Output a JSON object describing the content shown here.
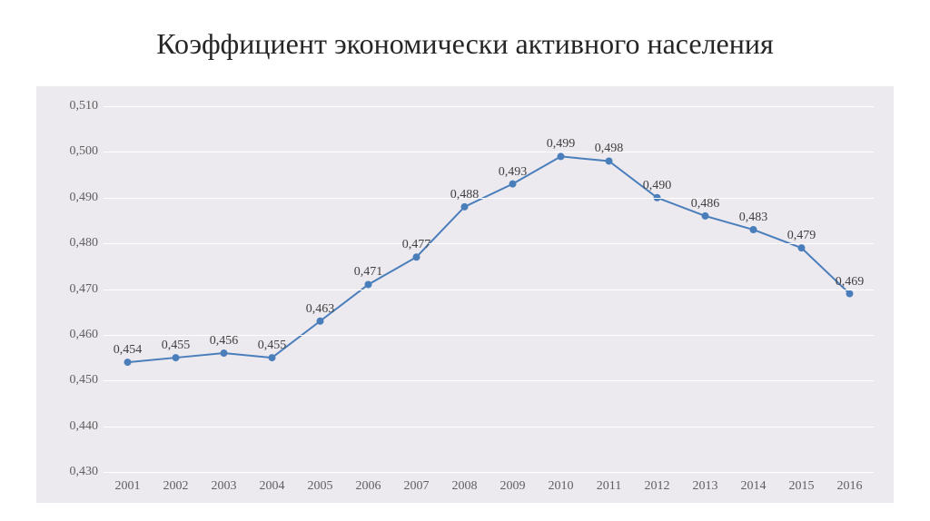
{
  "title": "Коэффициент экономически активного населения",
  "chart": {
    "type": "line",
    "background_color": "#ece9ef",
    "grid_color": "#ffffff",
    "label_color": "#606060",
    "title_color": "#262626",
    "title_fontsize": 32,
    "label_fontsize": 14,
    "line_color": "#4a7ebb",
    "line_width": 2,
    "marker_color": "#4a7ebb",
    "marker_size": 4,
    "x": [
      "2001",
      "2002",
      "2003",
      "2004",
      "2005",
      "2006",
      "2007",
      "2008",
      "2009",
      "2010",
      "2011",
      "2012",
      "2013",
      "2014",
      "2015",
      "2016"
    ],
    "y": [
      0.454,
      0.455,
      0.456,
      0.455,
      0.463,
      0.471,
      0.477,
      0.488,
      0.493,
      0.499,
      0.498,
      0.49,
      0.486,
      0.483,
      0.479,
      0.469
    ],
    "y_labels": [
      "0,454",
      "0,455",
      "0,456",
      "0,455",
      "0,463",
      "0,471",
      "0,477",
      "0,488",
      "0,493",
      "0,499",
      "0,498",
      "0,490",
      "0,486",
      "0,483",
      "0,479",
      "0,469"
    ],
    "ymin": 0.43,
    "ymax": 0.51,
    "ytick_step": 0.01,
    "ytick_format_comma": true,
    "ytick_labels": [
      "0,430",
      "0,440",
      "0,450",
      "0,460",
      "0,470",
      "0,480",
      "0,490",
      "0,500",
      "0,510"
    ],
    "ytick_values": [
      0.43,
      0.44,
      0.45,
      0.46,
      0.47,
      0.48,
      0.49,
      0.5,
      0.51
    ]
  }
}
